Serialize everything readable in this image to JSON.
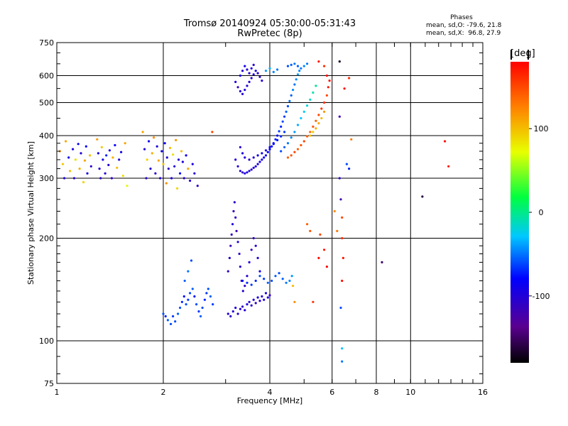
{
  "chart_data": {
    "type": "scatter",
    "title": "Tromsø 20140924 05:30:00-05:31:43",
    "subtitle": "RwPretec (8p)",
    "xlabel": "Frequency [MHz]",
    "ylabel": "Stationary phase Virtual Height [km]",
    "x_scale": "log",
    "y_scale": "log",
    "xlim": [
      1,
      16
    ],
    "ylim": [
      75,
      750
    ],
    "x_ticks": [
      1,
      2,
      4,
      6,
      8,
      10,
      16
    ],
    "y_ticks": [
      75,
      100,
      200,
      300,
      400,
      500,
      600,
      750
    ],
    "grid": true,
    "stats": {
      "heading": "Phases",
      "line_o": "mean, sd,O: -79.6, 21.8",
      "line_x": "mean, sd,X:  96.8, 27.9"
    },
    "colorbar": {
      "label": "[deg]",
      "range": [
        -180,
        180
      ],
      "ticks": [
        100,
        0,
        -100
      ],
      "colormap": "rainbow (black-purple-blue-cyan-green-yellow-red)"
    },
    "point_format": "[frequency MHz, virtual height km, phase deg]",
    "points": [
      [
        1.02,
        360,
        120
      ],
      [
        1.04,
        330,
        95
      ],
      [
        1.05,
        300,
        -100
      ],
      [
        1.06,
        385,
        110
      ],
      [
        1.08,
        345,
        -90
      ],
      [
        1.09,
        315,
        100
      ],
      [
        1.11,
        365,
        -95
      ],
      [
        1.12,
        300,
        -110
      ],
      [
        1.13,
        340,
        85
      ],
      [
        1.15,
        378,
        -85
      ],
      [
        1.16,
        320,
        105
      ],
      [
        1.17,
        355,
        -100
      ],
      [
        1.19,
        292,
        90
      ],
      [
        1.2,
        338,
        110
      ],
      [
        1.21,
        372,
        -80
      ],
      [
        1.22,
        310,
        -95
      ],
      [
        1.24,
        350,
        100
      ],
      [
        1.25,
        325,
        -105
      ],
      [
        1.3,
        390,
        115
      ],
      [
        1.31,
        355,
        -95
      ],
      [
        1.32,
        320,
        -100
      ],
      [
        1.33,
        300,
        -110
      ],
      [
        1.34,
        370,
        95
      ],
      [
        1.35,
        340,
        -90
      ],
      [
        1.37,
        310,
        -100
      ],
      [
        1.38,
        350,
        -70
      ],
      [
        1.4,
        328,
        -100
      ],
      [
        1.41,
        362,
        -95
      ],
      [
        1.43,
        300,
        -110
      ],
      [
        1.44,
        345,
        105
      ],
      [
        1.46,
        375,
        -85
      ],
      [
        1.48,
        322,
        100
      ],
      [
        1.5,
        340,
        -100
      ],
      [
        1.52,
        358,
        -90
      ],
      [
        1.54,
        305,
        85
      ],
      [
        1.56,
        380,
        110
      ],
      [
        1.58,
        285,
        75
      ],
      [
        1.75,
        410,
        110
      ],
      [
        1.77,
        365,
        -100
      ],
      [
        1.79,
        300,
        -110
      ],
      [
        1.8,
        340,
        90
      ],
      [
        1.82,
        385,
        -90
      ],
      [
        1.84,
        320,
        -100
      ],
      [
        1.86,
        355,
        105
      ],
      [
        1.88,
        395,
        120
      ],
      [
        1.9,
        310,
        -105
      ],
      [
        1.92,
        372,
        -95
      ],
      [
        1.94,
        338,
        110
      ],
      [
        1.96,
        300,
        -100
      ],
      [
        1.98,
        360,
        -85
      ],
      [
        2.0,
        330,
        95
      ],
      [
        2.02,
        380,
        -90
      ],
      [
        2.04,
        290,
        120
      ],
      [
        2.05,
        345,
        -100
      ],
      [
        2.07,
        320,
        -110
      ],
      [
        2.09,
        368,
        100
      ],
      [
        2.11,
        300,
        -95
      ],
      [
        2.13,
        352,
        85
      ],
      [
        2.15,
        325,
        -100
      ],
      [
        2.17,
        388,
        115
      ],
      [
        2.19,
        280,
        90
      ],
      [
        2.21,
        340,
        -100
      ],
      [
        2.23,
        310,
        -80
      ],
      [
        2.25,
        360,
        100
      ],
      [
        2.27,
        335,
        -95
      ],
      [
        2.29,
        300,
        -110
      ],
      [
        2.32,
        350,
        -90
      ],
      [
        2.35,
        320,
        110
      ],
      [
        2.38,
        295,
        -100
      ],
      [
        2.42,
        330,
        -95
      ],
      [
        2.45,
        310,
        -100
      ],
      [
        2.5,
        285,
        -110
      ],
      [
        2.75,
        410,
        150
      ],
      [
        2.0,
        120,
        -60
      ],
      [
        2.03,
        118,
        -70
      ],
      [
        2.06,
        115,
        -55
      ],
      [
        2.1,
        112,
        -60
      ],
      [
        2.13,
        118,
        -65
      ],
      [
        2.16,
        114,
        -60
      ],
      [
        2.2,
        120,
        -55
      ],
      [
        2.23,
        125,
        -60
      ],
      [
        2.26,
        130,
        -70
      ],
      [
        2.29,
        135,
        -75
      ],
      [
        2.32,
        128,
        -60
      ],
      [
        2.35,
        132,
        -65
      ],
      [
        2.38,
        138,
        -60
      ],
      [
        2.42,
        142,
        -55
      ],
      [
        2.45,
        135,
        -75
      ],
      [
        2.48,
        128,
        -60
      ],
      [
        2.52,
        122,
        -65
      ],
      [
        2.55,
        118,
        -55
      ],
      [
        2.58,
        125,
        -60
      ],
      [
        2.62,
        132,
        -70
      ],
      [
        2.65,
        138,
        -65
      ],
      [
        2.68,
        142,
        -60
      ],
      [
        2.72,
        135,
        -55
      ],
      [
        2.76,
        128,
        -65
      ],
      [
        2.35,
        160,
        -50
      ],
      [
        2.4,
        172,
        -60
      ],
      [
        2.3,
        150,
        -55
      ],
      [
        3.05,
        120,
        -100
      ],
      [
        3.1,
        118,
        -110
      ],
      [
        3.15,
        122,
        -100
      ],
      [
        3.2,
        125,
        -95
      ],
      [
        3.25,
        120,
        -105
      ],
      [
        3.3,
        124,
        -100
      ],
      [
        3.35,
        126,
        -110
      ],
      [
        3.4,
        123,
        -100
      ],
      [
        3.45,
        128,
        -95
      ],
      [
        3.5,
        130,
        -100
      ],
      [
        3.55,
        127,
        -105
      ],
      [
        3.6,
        132,
        -100
      ],
      [
        3.65,
        129,
        -110
      ],
      [
        3.7,
        134,
        -95
      ],
      [
        3.75,
        131,
        -100
      ],
      [
        3.8,
        135,
        -105
      ],
      [
        3.85,
        132,
        -100
      ],
      [
        3.9,
        138,
        -95
      ],
      [
        3.95,
        134,
        -100
      ],
      [
        4.0,
        136,
        -110
      ],
      [
        3.05,
        160,
        -110
      ],
      [
        3.08,
        175,
        -105
      ],
      [
        3.1,
        190,
        -120
      ],
      [
        3.12,
        205,
        -110
      ],
      [
        3.14,
        220,
        -100
      ],
      [
        3.16,
        240,
        -115
      ],
      [
        3.18,
        255,
        -105
      ],
      [
        3.2,
        230,
        -110
      ],
      [
        3.22,
        210,
        -120
      ],
      [
        3.25,
        195,
        -100
      ],
      [
        3.28,
        180,
        -110
      ],
      [
        3.3,
        165,
        -105
      ],
      [
        3.33,
        150,
        -115
      ],
      [
        3.36,
        140,
        -100
      ],
      [
        3.4,
        145,
        -110
      ],
      [
        3.45,
        155,
        -105
      ],
      [
        3.5,
        170,
        -100
      ],
      [
        3.55,
        185,
        -115
      ],
      [
        3.6,
        200,
        -110
      ],
      [
        3.65,
        190,
        -105
      ],
      [
        3.7,
        175,
        -100
      ],
      [
        3.75,
        160,
        -90
      ],
      [
        3.35,
        150,
        -80
      ],
      [
        3.45,
        148,
        -70
      ],
      [
        3.55,
        146,
        -65
      ],
      [
        3.65,
        150,
        -70
      ],
      [
        3.75,
        155,
        -60
      ],
      [
        3.85,
        152,
        -65
      ],
      [
        3.95,
        148,
        -55
      ],
      [
        4.05,
        150,
        -60
      ],
      [
        4.15,
        155,
        -55
      ],
      [
        4.25,
        158,
        -60
      ],
      [
        4.35,
        152,
        -55
      ],
      [
        4.45,
        148,
        -50
      ],
      [
        4.55,
        150,
        -45
      ],
      [
        4.62,
        155,
        -40
      ],
      [
        4.65,
        145,
        100
      ],
      [
        4.7,
        130,
        120
      ],
      [
        3.2,
        340,
        -100
      ],
      [
        3.25,
        325,
        -105
      ],
      [
        3.3,
        315,
        -100
      ],
      [
        3.35,
        312,
        -110
      ],
      [
        3.4,
        310,
        -100
      ],
      [
        3.45,
        312,
        -95
      ],
      [
        3.5,
        315,
        -100
      ],
      [
        3.55,
        318,
        -105
      ],
      [
        3.6,
        322,
        -100
      ],
      [
        3.65,
        325,
        -95
      ],
      [
        3.7,
        330,
        -100
      ],
      [
        3.75,
        335,
        -90
      ],
      [
        3.8,
        340,
        -95
      ],
      [
        3.85,
        345,
        -85
      ],
      [
        3.9,
        350,
        -90
      ],
      [
        3.95,
        358,
        -80
      ],
      [
        4.0,
        365,
        -85
      ],
      [
        4.05,
        372,
        -75
      ],
      [
        4.1,
        380,
        -80
      ],
      [
        4.15,
        390,
        -70
      ],
      [
        4.2,
        400,
        -75
      ],
      [
        4.25,
        412,
        -65
      ],
      [
        4.3,
        425,
        -70
      ],
      [
        4.35,
        440,
        -60
      ],
      [
        4.4,
        455,
        -65
      ],
      [
        4.45,
        470,
        -55
      ],
      [
        4.5,
        488,
        -60
      ],
      [
        4.55,
        505,
        -50
      ],
      [
        4.6,
        525,
        -55
      ],
      [
        4.65,
        545,
        -45
      ],
      [
        4.7,
        565,
        -50
      ],
      [
        4.75,
        585,
        -45
      ],
      [
        4.8,
        605,
        -40
      ],
      [
        4.85,
        620,
        -45
      ],
      [
        3.3,
        370,
        -100
      ],
      [
        3.35,
        355,
        -95
      ],
      [
        3.4,
        345,
        -100
      ],
      [
        3.5,
        340,
        -105
      ],
      [
        3.6,
        345,
        -100
      ],
      [
        3.7,
        350,
        -95
      ],
      [
        3.8,
        355,
        -90
      ],
      [
        3.9,
        362,
        -95
      ],
      [
        4.0,
        370,
        -85
      ],
      [
        4.1,
        378,
        -80
      ],
      [
        4.2,
        388,
        -75
      ],
      [
        4.3,
        398,
        -70
      ],
      [
        4.4,
        410,
        -65
      ],
      [
        4.3,
        360,
        -60
      ],
      [
        4.4,
        370,
        -55
      ],
      [
        4.5,
        380,
        -50
      ],
      [
        4.6,
        395,
        -45
      ],
      [
        4.7,
        410,
        -40
      ],
      [
        4.8,
        430,
        -35
      ],
      [
        4.9,
        450,
        -30
      ],
      [
        5.0,
        470,
        -25
      ],
      [
        5.1,
        490,
        -20
      ],
      [
        5.2,
        510,
        -15
      ],
      [
        5.3,
        535,
        -10
      ],
      [
        5.4,
        560,
        -5
      ],
      [
        4.5,
        345,
        140
      ],
      [
        4.6,
        350,
        145
      ],
      [
        4.7,
        358,
        150
      ],
      [
        4.8,
        365,
        140
      ],
      [
        4.9,
        375,
        145
      ],
      [
        5.0,
        385,
        150
      ],
      [
        5.1,
        398,
        140
      ],
      [
        5.2,
        410,
        135
      ],
      [
        5.3,
        425,
        145
      ],
      [
        5.4,
        442,
        140
      ],
      [
        5.5,
        460,
        150
      ],
      [
        5.6,
        480,
        155
      ],
      [
        5.7,
        500,
        160
      ],
      [
        5.8,
        525,
        150
      ],
      [
        5.85,
        555,
        170
      ],
      [
        5.9,
        580,
        175
      ],
      [
        5.8,
        600,
        180
      ],
      [
        5.7,
        640,
        160
      ],
      [
        5.5,
        660,
        170
      ],
      [
        5.2,
        400,
        100
      ],
      [
        5.3,
        410,
        95
      ],
      [
        5.4,
        420,
        105
      ],
      [
        5.5,
        435,
        110
      ],
      [
        5.6,
        450,
        100
      ],
      [
        5.7,
        470,
        115
      ],
      [
        3.2,
        575,
        -100
      ],
      [
        3.25,
        555,
        -110
      ],
      [
        3.3,
        540,
        -100
      ],
      [
        3.35,
        530,
        -105
      ],
      [
        3.4,
        545,
        -95
      ],
      [
        3.45,
        560,
        -100
      ],
      [
        3.5,
        575,
        -105
      ],
      [
        3.55,
        590,
        -100
      ],
      [
        3.6,
        605,
        -95
      ],
      [
        3.65,
        620,
        -90
      ],
      [
        3.7,
        610,
        -100
      ],
      [
        3.75,
        595,
        -105
      ],
      [
        3.8,
        580,
        -100
      ],
      [
        3.3,
        600,
        -95
      ],
      [
        3.35,
        620,
        -100
      ],
      [
        3.4,
        640,
        -90
      ],
      [
        3.45,
        625,
        -105
      ],
      [
        3.5,
        610,
        -100
      ],
      [
        3.55,
        630,
        -95
      ],
      [
        3.6,
        645,
        -100
      ],
      [
        4.5,
        640,
        -60
      ],
      [
        4.6,
        645,
        -55
      ],
      [
        4.7,
        650,
        -50
      ],
      [
        4.8,
        640,
        -55
      ],
      [
        4.9,
        630,
        -50
      ],
      [
        5.0,
        640,
        -45
      ],
      [
        5.1,
        650,
        -50
      ],
      [
        3.9,
        620,
        -40
      ],
      [
        4.0,
        630,
        -35
      ],
      [
        4.1,
        615,
        -45
      ],
      [
        4.2,
        625,
        -50
      ],
      [
        5.1,
        220,
        140
      ],
      [
        5.2,
        210,
        145
      ],
      [
        5.55,
        205,
        150
      ],
      [
        5.7,
        185,
        170
      ],
      [
        5.5,
        175,
        175
      ],
      [
        5.8,
        165,
        180
      ],
      [
        5.3,
        130,
        160
      ],
      [
        6.3,
        660,
        -170
      ],
      [
        6.3,
        455,
        -120
      ],
      [
        6.3,
        300,
        -110
      ],
      [
        6.35,
        260,
        -120
      ],
      [
        6.4,
        230,
        150
      ],
      [
        6.4,
        200,
        160
      ],
      [
        6.45,
        175,
        170
      ],
      [
        6.4,
        150,
        175
      ],
      [
        6.35,
        125,
        -60
      ],
      [
        6.4,
        95,
        -30
      ],
      [
        6.4,
        87,
        -50
      ],
      [
        6.5,
        550,
        175
      ],
      [
        6.7,
        590,
        160
      ],
      [
        6.8,
        390,
        130
      ],
      [
        6.6,
        330,
        -60
      ],
      [
        6.7,
        320,
        -70
      ],
      [
        6.1,
        240,
        120
      ],
      [
        6.2,
        210,
        130
      ],
      [
        8.3,
        170,
        -150
      ],
      [
        10.8,
        265,
        -160
      ],
      [
        12.5,
        385,
        175
      ],
      [
        12.8,
        325,
        170
      ]
    ]
  }
}
